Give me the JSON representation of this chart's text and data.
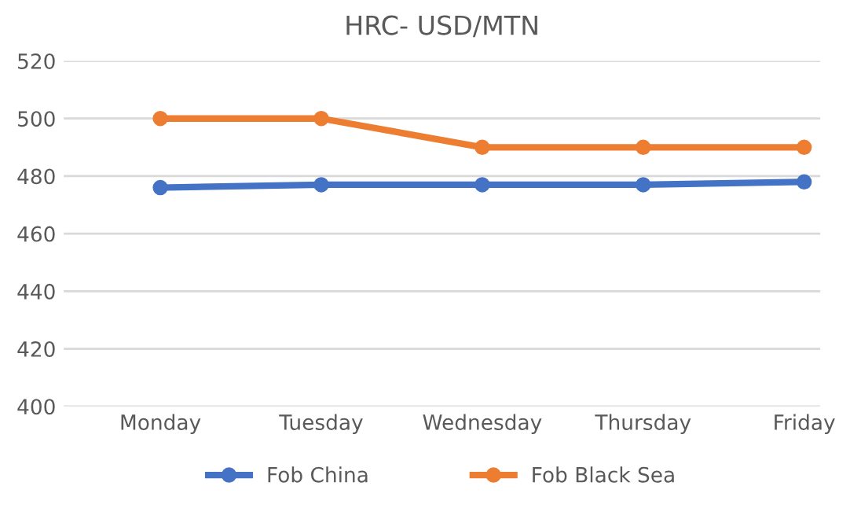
{
  "chart_data": {
    "type": "line",
    "title": "HRC- USD/MTN",
    "categories": [
      "Monday",
      "Tuesday",
      "Wednesday",
      "Thursday",
      "Friday"
    ],
    "series": [
      {
        "name": "Fob China",
        "color": "#4472c4",
        "values": [
          476,
          477,
          477,
          477,
          478
        ]
      },
      {
        "name": "Fob Black Sea",
        "color": "#ed7d31",
        "values": [
          500,
          500,
          490,
          490,
          490
        ]
      }
    ],
    "ylim": [
      400,
      520
    ],
    "yticks": [
      400,
      420,
      440,
      460,
      480,
      500,
      520
    ],
    "grid": "y",
    "legend": "bottom",
    "marker": "circle",
    "line_style": "solid"
  }
}
